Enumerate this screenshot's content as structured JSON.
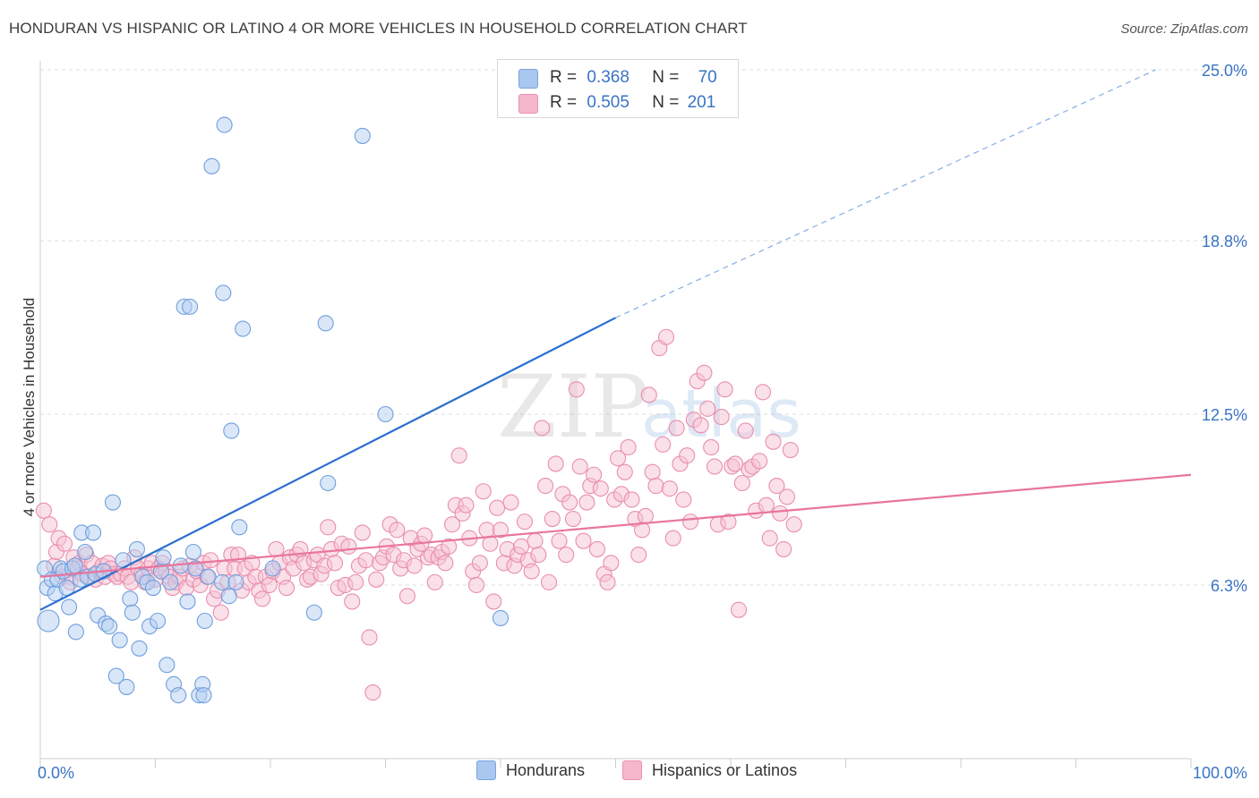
{
  "header": {
    "title": "HONDURAN VS HISPANIC OR LATINO 4 OR MORE VEHICLES IN HOUSEHOLD CORRELATION CHART",
    "source": "Source: ZipAtlas.com"
  },
  "watermark": {
    "text_zip": "ZIP",
    "text_atlas": "atlas"
  },
  "legend_top": {
    "rows": [
      {
        "r_label": "R =",
        "r_value": "0.368",
        "n_label": "N =",
        "n_value": "70",
        "color": "#a9c7ef"
      },
      {
        "r_label": "R =",
        "r_value": "0.505",
        "n_label": "N =",
        "n_value": "201",
        "color": "#f6b6cc"
      }
    ]
  },
  "legend_bottom": {
    "items": [
      {
        "label": "Hondurans",
        "color": "#a9c7ef"
      },
      {
        "label": "Hispanics or Latinos",
        "color": "#f6b6cc"
      }
    ]
  },
  "chart_data": {
    "type": "scatter",
    "title": "HONDURAN VS HISPANIC OR LATINO 4 OR MORE VEHICLES IN HOUSEHOLD CORRELATION CHART",
    "xlabel": "",
    "ylabel": "4 or more Vehicles in Household",
    "xlim": [
      0,
      100
    ],
    "ylim": [
      0,
      25.0
    ],
    "x_tick_labels": [
      "0.0%",
      "100.0%"
    ],
    "y_ticks": [
      6.3,
      12.5,
      18.8,
      25.0
    ],
    "y_tick_labels": [
      "6.3%",
      "12.5%",
      "18.8%",
      "25.0%"
    ],
    "grid": true,
    "legend_position": "top-center",
    "colors": {
      "hondurans": "#5b8fd6",
      "hispanics": "#e8759c",
      "blue_line": "#2a6fcf",
      "pink_line": "#e8759c"
    },
    "series": [
      {
        "name": "Hondurans",
        "stats": {
          "R": 0.368,
          "N": 70
        },
        "trend": {
          "x0": 0,
          "y0": 5.4,
          "x1": 50,
          "y1": 16.0,
          "extend_to_x": 100,
          "extend_to_y": 26.6
        },
        "points": [
          [
            0.4,
            6.9
          ],
          [
            0.7,
            5.0
          ],
          [
            0.6,
            6.2
          ],
          [
            1.0,
            6.5
          ],
          [
            1.3,
            6.0
          ],
          [
            1.5,
            6.5
          ],
          [
            1.8,
            6.9
          ],
          [
            2.0,
            6.8
          ],
          [
            2.3,
            6.2
          ],
          [
            2.5,
            5.5
          ],
          [
            2.8,
            6.9
          ],
          [
            3.0,
            7.0
          ],
          [
            3.1,
            4.6
          ],
          [
            3.5,
            6.5
          ],
          [
            3.6,
            8.2
          ],
          [
            3.9,
            7.5
          ],
          [
            4.1,
            6.6
          ],
          [
            4.6,
            8.2
          ],
          [
            4.8,
            6.7
          ],
          [
            5.0,
            5.2
          ],
          [
            5.5,
            6.8
          ],
          [
            5.7,
            4.9
          ],
          [
            6.0,
            4.8
          ],
          [
            6.3,
            9.3
          ],
          [
            6.6,
            3.0
          ],
          [
            6.9,
            4.3
          ],
          [
            7.2,
            7.2
          ],
          [
            7.5,
            2.6
          ],
          [
            7.8,
            5.8
          ],
          [
            8.0,
            5.3
          ],
          [
            8.4,
            7.6
          ],
          [
            8.6,
            4.0
          ],
          [
            8.9,
            6.6
          ],
          [
            9.3,
            6.4
          ],
          [
            9.5,
            4.8
          ],
          [
            9.8,
            6.2
          ],
          [
            10.2,
            5.0
          ],
          [
            10.5,
            6.8
          ],
          [
            10.7,
            7.3
          ],
          [
            11.0,
            3.4
          ],
          [
            11.3,
            6.4
          ],
          [
            11.6,
            2.7
          ],
          [
            12.0,
            2.3
          ],
          [
            12.2,
            7.0
          ],
          [
            12.5,
            16.4
          ],
          [
            12.8,
            5.7
          ],
          [
            13.0,
            16.4
          ],
          [
            13.3,
            7.5
          ],
          [
            13.5,
            6.9
          ],
          [
            13.8,
            2.3
          ],
          [
            14.1,
            2.7
          ],
          [
            14.2,
            2.3
          ],
          [
            14.3,
            5.0
          ],
          [
            14.6,
            6.6
          ],
          [
            14.9,
            21.5
          ],
          [
            15.8,
            6.4
          ],
          [
            15.9,
            16.9
          ],
          [
            16.0,
            23.0
          ],
          [
            16.4,
            5.9
          ],
          [
            16.6,
            11.9
          ],
          [
            17.0,
            6.4
          ],
          [
            17.3,
            8.4
          ],
          [
            17.6,
            15.6
          ],
          [
            20.2,
            6.9
          ],
          [
            23.8,
            5.3
          ],
          [
            24.8,
            15.8
          ],
          [
            25.0,
            10.0
          ],
          [
            28.0,
            22.6
          ],
          [
            30.0,
            12.5
          ],
          [
            40.0,
            5.1
          ]
        ],
        "large_points": [
          [
            0.3,
            6.9
          ],
          [
            0.7,
            5.0
          ]
        ]
      },
      {
        "name": "Hispanics or Latinos",
        "stats": {
          "R": 0.505,
          "N": 201
        },
        "trend": {
          "x0": 0,
          "y0": 6.6,
          "x1": 100,
          "y1": 10.3
        },
        "points": [
          [
            0.3,
            9.0
          ],
          [
            0.8,
            8.5
          ],
          [
            1.2,
            7.0
          ],
          [
            1.4,
            7.5
          ],
          [
            1.6,
            8.0
          ],
          [
            1.9,
            6.6
          ],
          [
            2.1,
            7.8
          ],
          [
            2.4,
            6.6
          ],
          [
            2.6,
            6.4
          ],
          [
            2.9,
            7.3
          ],
          [
            3.2,
            6.9
          ],
          [
            3.4,
            7.1
          ],
          [
            3.7,
            6.7
          ],
          [
            4.0,
            7.4
          ],
          [
            4.3,
            6.6
          ],
          [
            4.5,
            7.1
          ],
          [
            4.8,
            6.5
          ],
          [
            5.1,
            6.8
          ],
          [
            5.4,
            7.0
          ],
          [
            5.6,
            6.6
          ],
          [
            5.9,
            7.1
          ],
          [
            6.1,
            6.9
          ],
          [
            6.4,
            6.7
          ],
          [
            6.7,
            6.6
          ],
          [
            7.0,
            6.7
          ],
          [
            7.3,
            6.9
          ],
          [
            7.6,
            6.6
          ],
          [
            7.9,
            6.4
          ],
          [
            8.2,
            7.3
          ],
          [
            8.5,
            6.9
          ],
          [
            8.8,
            6.7
          ],
          [
            9.1,
            6.4
          ],
          [
            9.4,
            6.9
          ],
          [
            9.7,
            7.1
          ],
          [
            10.0,
            6.5
          ],
          [
            10.3,
            6.9
          ],
          [
            10.6,
            7.1
          ],
          [
            10.9,
            6.8
          ],
          [
            11.2,
            6.6
          ],
          [
            11.5,
            6.2
          ],
          [
            11.8,
            6.4
          ],
          [
            12.1,
            6.6
          ],
          [
            12.4,
            6.9
          ],
          [
            12.7,
            6.2
          ],
          [
            13.0,
            7.0
          ],
          [
            13.3,
            6.5
          ],
          [
            13.6,
            6.8
          ],
          [
            13.9,
            6.3
          ],
          [
            14.2,
            7.1
          ],
          [
            14.5,
            6.6
          ],
          [
            14.8,
            7.2
          ],
          [
            15.1,
            5.8
          ],
          [
            15.4,
            6.1
          ],
          [
            15.7,
            5.3
          ],
          [
            16.0,
            6.9
          ],
          [
            16.3,
            6.4
          ],
          [
            16.6,
            7.4
          ],
          [
            16.9,
            6.9
          ],
          [
            17.2,
            7.4
          ],
          [
            17.5,
            6.1
          ],
          [
            17.8,
            6.9
          ],
          [
            18.1,
            6.4
          ],
          [
            18.4,
            7.1
          ],
          [
            18.7,
            6.6
          ],
          [
            19.0,
            6.1
          ],
          [
            19.3,
            5.8
          ],
          [
            19.6,
            6.6
          ],
          [
            19.9,
            6.3
          ],
          [
            20.2,
            6.8
          ],
          [
            20.5,
            7.6
          ],
          [
            20.8,
            7.1
          ],
          [
            21.1,
            6.6
          ],
          [
            21.4,
            6.2
          ],
          [
            21.7,
            7.3
          ],
          [
            22.0,
            6.9
          ],
          [
            22.3,
            7.4
          ],
          [
            22.6,
            7.6
          ],
          [
            22.9,
            7.1
          ],
          [
            23.2,
            6.5
          ],
          [
            23.5,
            6.6
          ],
          [
            23.8,
            7.2
          ],
          [
            24.1,
            7.4
          ],
          [
            24.4,
            6.7
          ],
          [
            24.7,
            7.0
          ],
          [
            25.0,
            8.4
          ],
          [
            25.3,
            7.6
          ],
          [
            25.6,
            7.1
          ],
          [
            25.9,
            6.2
          ],
          [
            26.2,
            7.8
          ],
          [
            26.5,
            6.3
          ],
          [
            26.8,
            7.7
          ],
          [
            27.1,
            5.7
          ],
          [
            27.4,
            6.4
          ],
          [
            27.7,
            7.0
          ],
          [
            28.0,
            8.2
          ],
          [
            28.3,
            7.2
          ],
          [
            28.6,
            4.4
          ],
          [
            28.9,
            2.4
          ],
          [
            29.2,
            6.5
          ],
          [
            29.5,
            7.1
          ],
          [
            29.8,
            7.3
          ],
          [
            30.1,
            7.7
          ],
          [
            30.4,
            8.5
          ],
          [
            30.7,
            7.4
          ],
          [
            31.0,
            8.3
          ],
          [
            31.3,
            6.9
          ],
          [
            31.6,
            7.2
          ],
          [
            31.9,
            5.9
          ],
          [
            32.2,
            8.0
          ],
          [
            32.5,
            7.0
          ],
          [
            32.8,
            7.6
          ],
          [
            33.1,
            7.8
          ],
          [
            33.4,
            8.1
          ],
          [
            33.7,
            7.3
          ],
          [
            34.0,
            7.4
          ],
          [
            34.3,
            6.4
          ],
          [
            34.6,
            7.3
          ],
          [
            34.9,
            7.5
          ],
          [
            35.2,
            7.1
          ],
          [
            35.5,
            7.7
          ],
          [
            35.8,
            8.5
          ],
          [
            36.1,
            9.2
          ],
          [
            36.4,
            11.0
          ],
          [
            36.7,
            8.9
          ],
          [
            37.0,
            9.2
          ],
          [
            37.3,
            8.0
          ],
          [
            37.6,
            6.8
          ],
          [
            37.9,
            6.3
          ],
          [
            38.2,
            7.1
          ],
          [
            38.5,
            9.7
          ],
          [
            38.8,
            8.3
          ],
          [
            39.1,
            7.8
          ],
          [
            39.4,
            5.7
          ],
          [
            39.7,
            9.1
          ],
          [
            40.0,
            8.3
          ],
          [
            40.3,
            7.1
          ],
          [
            40.6,
            7.6
          ],
          [
            40.9,
            9.3
          ],
          [
            41.2,
            7.0
          ],
          [
            41.5,
            7.4
          ],
          [
            41.8,
            7.7
          ],
          [
            42.1,
            8.6
          ],
          [
            42.4,
            7.2
          ],
          [
            42.7,
            6.8
          ],
          [
            43.0,
            7.9
          ],
          [
            43.3,
            7.4
          ],
          [
            43.6,
            12.0
          ],
          [
            43.9,
            9.9
          ],
          [
            44.2,
            6.4
          ],
          [
            44.5,
            8.7
          ],
          [
            44.8,
            10.7
          ],
          [
            45.1,
            7.9
          ],
          [
            45.4,
            9.6
          ],
          [
            45.7,
            7.4
          ],
          [
            46.0,
            9.3
          ],
          [
            46.3,
            8.7
          ],
          [
            46.6,
            13.4
          ],
          [
            46.9,
            10.6
          ],
          [
            47.2,
            7.9
          ],
          [
            47.5,
            9.3
          ],
          [
            47.8,
            9.9
          ],
          [
            48.1,
            10.3
          ],
          [
            48.4,
            7.6
          ],
          [
            48.7,
            9.8
          ],
          [
            49.0,
            6.7
          ],
          [
            49.3,
            6.4
          ],
          [
            49.6,
            7.1
          ],
          [
            49.9,
            9.4
          ],
          [
            50.2,
            10.9
          ],
          [
            50.5,
            9.6
          ],
          [
            50.8,
            10.4
          ],
          [
            51.1,
            11.3
          ],
          [
            51.4,
            9.4
          ],
          [
            51.7,
            8.7
          ],
          [
            52.0,
            7.4
          ],
          [
            52.3,
            8.3
          ],
          [
            52.6,
            8.8
          ],
          [
            52.9,
            13.2
          ],
          [
            53.2,
            10.4
          ],
          [
            53.5,
            9.9
          ],
          [
            53.8,
            14.9
          ],
          [
            54.1,
            11.4
          ],
          [
            54.4,
            15.3
          ],
          [
            54.7,
            9.8
          ],
          [
            55.0,
            8.0
          ],
          [
            55.3,
            12.0
          ],
          [
            55.6,
            10.7
          ],
          [
            55.9,
            9.4
          ],
          [
            56.2,
            11.0
          ],
          [
            56.5,
            8.6
          ],
          [
            56.8,
            12.3
          ],
          [
            57.1,
            13.7
          ],
          [
            57.4,
            12.1
          ],
          [
            57.7,
            14.0
          ],
          [
            58.0,
            12.7
          ],
          [
            58.3,
            11.3
          ],
          [
            58.6,
            10.6
          ],
          [
            58.9,
            8.5
          ],
          [
            59.2,
            12.4
          ],
          [
            59.5,
            13.4
          ],
          [
            59.8,
            8.6
          ],
          [
            60.1,
            10.6
          ],
          [
            60.4,
            10.7
          ],
          [
            60.7,
            5.4
          ],
          [
            61.0,
            10.0
          ],
          [
            61.3,
            11.9
          ],
          [
            61.6,
            10.5
          ],
          [
            61.9,
            10.6
          ],
          [
            62.2,
            9.0
          ],
          [
            62.5,
            10.8
          ],
          [
            62.8,
            13.3
          ],
          [
            63.1,
            9.2
          ],
          [
            63.4,
            8.0
          ],
          [
            63.7,
            11.5
          ],
          [
            64.0,
            9.9
          ],
          [
            64.3,
            8.9
          ],
          [
            64.6,
            7.6
          ],
          [
            64.9,
            9.5
          ],
          [
            65.2,
            11.2
          ],
          [
            65.5,
            8.5
          ]
        ],
        "large_points": []
      }
    ]
  },
  "axis": {
    "y_title": "4 or more Vehicles in Household",
    "x_left_label": "0.0%",
    "x_right_label": "100.0%"
  }
}
